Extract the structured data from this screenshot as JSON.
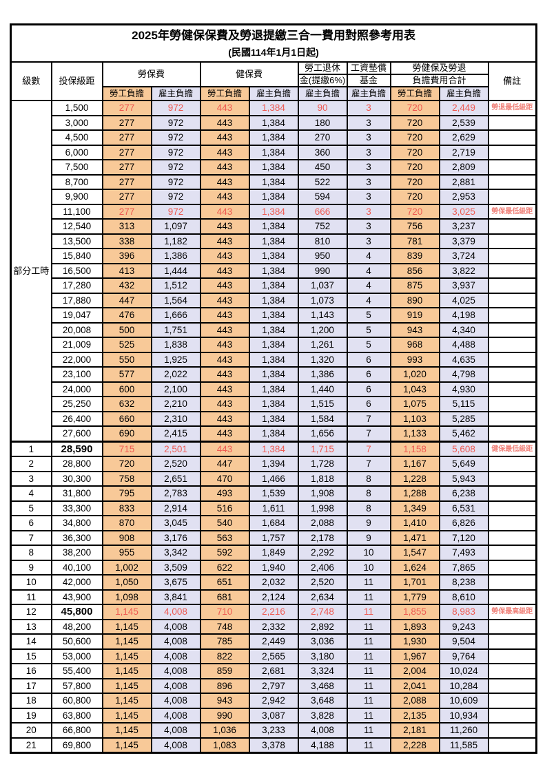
{
  "title": "2025年勞健保保費及勞退提繳三合一費用對照參考用表",
  "subtitle": "(民國114年1月1日起)",
  "colors": {
    "employee_col_bg": "#F8C998",
    "employer_col_bg": "#E1E1F2",
    "highlight_red": "#EE5A52",
    "note_red": "#F0837B",
    "border": "#000000"
  },
  "header": {
    "level": "級數",
    "bracket": "投保級距",
    "labor_insurance": "勞保費",
    "health_insurance": "健保費",
    "pension_line1": "勞工退休",
    "pension_line2": "金(提繳6%)",
    "wage_fund_line1": "工資墊償",
    "wage_fund_line2": "基金",
    "total_line1": "勞健保及勞退",
    "total_line2": "負擔費用合計",
    "remark": "備註",
    "employee": "勞工負擔",
    "employer": "雇主負擔"
  },
  "rows": [
    {
      "level": "部分工時",
      "level_rowspan": 23,
      "bracket": "1,500",
      "values": [
        "277",
        "972",
        "443",
        "1,384",
        "90",
        "3",
        "720",
        "2,449"
      ],
      "note": "勞退最低級距",
      "red": true
    },
    {
      "bracket": "3,000",
      "values": [
        "277",
        "972",
        "443",
        "1,384",
        "180",
        "3",
        "720",
        "2,539"
      ]
    },
    {
      "bracket": "4,500",
      "values": [
        "277",
        "972",
        "443",
        "1,384",
        "270",
        "3",
        "720",
        "2,629"
      ]
    },
    {
      "bracket": "6,000",
      "values": [
        "277",
        "972",
        "443",
        "1,384",
        "360",
        "3",
        "720",
        "2,719"
      ]
    },
    {
      "bracket": "7,500",
      "values": [
        "277",
        "972",
        "443",
        "1,384",
        "450",
        "3",
        "720",
        "2,809"
      ]
    },
    {
      "bracket": "8,700",
      "values": [
        "277",
        "972",
        "443",
        "1,384",
        "522",
        "3",
        "720",
        "2,881"
      ]
    },
    {
      "bracket": "9,900",
      "values": [
        "277",
        "972",
        "443",
        "1,384",
        "594",
        "3",
        "720",
        "2,953"
      ]
    },
    {
      "bracket": "11,100",
      "values": [
        "277",
        "972",
        "443",
        "1,384",
        "666",
        "3",
        "720",
        "3,025"
      ],
      "note": "勞保最低級距",
      "red": true
    },
    {
      "bracket": "12,540",
      "values": [
        "313",
        "1,097",
        "443",
        "1,384",
        "752",
        "3",
        "756",
        "3,237"
      ]
    },
    {
      "bracket": "13,500",
      "values": [
        "338",
        "1,182",
        "443",
        "1,384",
        "810",
        "3",
        "781",
        "3,379"
      ]
    },
    {
      "bracket": "15,840",
      "values": [
        "396",
        "1,386",
        "443",
        "1,384",
        "950",
        "4",
        "839",
        "3,724"
      ]
    },
    {
      "bracket": "16,500",
      "values": [
        "413",
        "1,444",
        "443",
        "1,384",
        "990",
        "4",
        "856",
        "3,822"
      ]
    },
    {
      "bracket": "17,280",
      "values": [
        "432",
        "1,512",
        "443",
        "1,384",
        "1,037",
        "4",
        "875",
        "3,937"
      ]
    },
    {
      "bracket": "17,880",
      "values": [
        "447",
        "1,564",
        "443",
        "1,384",
        "1,073",
        "4",
        "890",
        "4,025"
      ]
    },
    {
      "bracket": "19,047",
      "values": [
        "476",
        "1,666",
        "443",
        "1,384",
        "1,143",
        "5",
        "919",
        "4,198"
      ]
    },
    {
      "bracket": "20,008",
      "values": [
        "500",
        "1,751",
        "443",
        "1,384",
        "1,200",
        "5",
        "943",
        "4,340"
      ]
    },
    {
      "bracket": "21,009",
      "values": [
        "525",
        "1,838",
        "443",
        "1,384",
        "1,261",
        "5",
        "968",
        "4,488"
      ]
    },
    {
      "bracket": "22,000",
      "values": [
        "550",
        "1,925",
        "443",
        "1,384",
        "1,320",
        "6",
        "993",
        "4,635"
      ]
    },
    {
      "bracket": "23,100",
      "values": [
        "577",
        "2,022",
        "443",
        "1,384",
        "1,386",
        "6",
        "1,020",
        "4,798"
      ]
    },
    {
      "bracket": "24,000",
      "values": [
        "600",
        "2,100",
        "443",
        "1,384",
        "1,440",
        "6",
        "1,043",
        "4,930"
      ]
    },
    {
      "bracket": "25,250",
      "values": [
        "632",
        "2,210",
        "443",
        "1,384",
        "1,515",
        "6",
        "1,075",
        "5,115"
      ]
    },
    {
      "bracket": "26,400",
      "values": [
        "660",
        "2,310",
        "443",
        "1,384",
        "1,584",
        "7",
        "1,103",
        "5,285"
      ]
    },
    {
      "bracket": "27,600",
      "values": [
        "690",
        "2,415",
        "443",
        "1,384",
        "1,656",
        "7",
        "1,133",
        "5,462"
      ]
    },
    {
      "level": "1",
      "bracket": "28,590",
      "values": [
        "715",
        "2,501",
        "443",
        "1,384",
        "1,715",
        "7",
        "1,158",
        "5,608"
      ],
      "note": "健保最低級距",
      "red": true,
      "bold": true,
      "section_start": true
    },
    {
      "level": "2",
      "bracket": "28,800",
      "values": [
        "720",
        "2,520",
        "447",
        "1,394",
        "1,728",
        "7",
        "1,167",
        "5,649"
      ]
    },
    {
      "level": "3",
      "bracket": "30,300",
      "values": [
        "758",
        "2,651",
        "470",
        "1,466",
        "1,818",
        "8",
        "1,228",
        "5,943"
      ]
    },
    {
      "level": "4",
      "bracket": "31,800",
      "values": [
        "795",
        "2,783",
        "493",
        "1,539",
        "1,908",
        "8",
        "1,288",
        "6,238"
      ]
    },
    {
      "level": "5",
      "bracket": "33,300",
      "values": [
        "833",
        "2,914",
        "516",
        "1,611",
        "1,998",
        "8",
        "1,349",
        "6,531"
      ]
    },
    {
      "level": "6",
      "bracket": "34,800",
      "values": [
        "870",
        "3,045",
        "540",
        "1,684",
        "2,088",
        "9",
        "1,410",
        "6,826"
      ]
    },
    {
      "level": "7",
      "bracket": "36,300",
      "values": [
        "908",
        "3,176",
        "563",
        "1,757",
        "2,178",
        "9",
        "1,471",
        "7,120"
      ]
    },
    {
      "level": "8",
      "bracket": "38,200",
      "values": [
        "955",
        "3,342",
        "592",
        "1,849",
        "2,292",
        "10",
        "1,547",
        "7,493"
      ]
    },
    {
      "level": "9",
      "bracket": "40,100",
      "values": [
        "1,002",
        "3,509",
        "622",
        "1,940",
        "2,406",
        "10",
        "1,624",
        "7,865"
      ]
    },
    {
      "level": "10",
      "bracket": "42,000",
      "values": [
        "1,050",
        "3,675",
        "651",
        "2,032",
        "2,520",
        "11",
        "1,701",
        "8,238"
      ]
    },
    {
      "level": "11",
      "bracket": "43,900",
      "values": [
        "1,098",
        "3,841",
        "681",
        "2,124",
        "2,634",
        "11",
        "1,779",
        "8,610"
      ]
    },
    {
      "level": "12",
      "bracket": "45,800",
      "values": [
        "1,145",
        "4,008",
        "710",
        "2,216",
        "2,748",
        "11",
        "1,855",
        "8,983"
      ],
      "note": "勞保最高級距",
      "red": true,
      "bold": true
    },
    {
      "level": "13",
      "bracket": "48,200",
      "values": [
        "1,145",
        "4,008",
        "748",
        "2,332",
        "2,892",
        "11",
        "1,893",
        "9,243"
      ]
    },
    {
      "level": "14",
      "bracket": "50,600",
      "values": [
        "1,145",
        "4,008",
        "785",
        "2,449",
        "3,036",
        "11",
        "1,930",
        "9,504"
      ]
    },
    {
      "level": "15",
      "bracket": "53,000",
      "values": [
        "1,145",
        "4,008",
        "822",
        "2,565",
        "3,180",
        "11",
        "1,967",
        "9,764"
      ]
    },
    {
      "level": "16",
      "bracket": "55,400",
      "values": [
        "1,145",
        "4,008",
        "859",
        "2,681",
        "3,324",
        "11",
        "2,004",
        "10,024"
      ]
    },
    {
      "level": "17",
      "bracket": "57,800",
      "values": [
        "1,145",
        "4,008",
        "896",
        "2,797",
        "3,468",
        "11",
        "2,041",
        "10,284"
      ]
    },
    {
      "level": "18",
      "bracket": "60,800",
      "values": [
        "1,145",
        "4,008",
        "943",
        "2,942",
        "3,648",
        "11",
        "2,088",
        "10,609"
      ]
    },
    {
      "level": "19",
      "bracket": "63,800",
      "values": [
        "1,145",
        "4,008",
        "990",
        "3,087",
        "3,828",
        "11",
        "2,135",
        "10,934"
      ]
    },
    {
      "level": "20",
      "bracket": "66,800",
      "values": [
        "1,145",
        "4,008",
        "1,036",
        "3,233",
        "4,008",
        "11",
        "2,181",
        "11,260"
      ]
    },
    {
      "level": "21",
      "bracket": "69,800",
      "values": [
        "1,145",
        "4,008",
        "1,083",
        "3,378",
        "4,188",
        "11",
        "2,228",
        "11,585"
      ]
    }
  ]
}
